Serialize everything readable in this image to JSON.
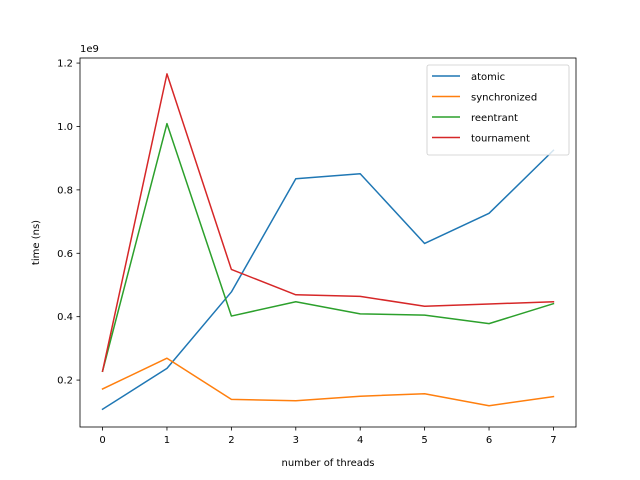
{
  "chart_data": {
    "type": "line",
    "title": "",
    "xlabel": "number of threads",
    "ylabel": "time (ns)",
    "y_offset_label": "1e9",
    "x": [
      0,
      1,
      2,
      3,
      4,
      5,
      6,
      7
    ],
    "xlim": [
      -0.35,
      7.35
    ],
    "ylim": [
      0.052,
      1.216
    ],
    "x_ticks": [
      0,
      1,
      2,
      3,
      4,
      5,
      6,
      7
    ],
    "x_tick_labels": [
      "0",
      "1",
      "2",
      "3",
      "4",
      "5",
      "6",
      "7"
    ],
    "y_ticks": [
      0.2,
      0.4,
      0.6,
      0.8,
      1.0,
      1.2
    ],
    "y_tick_labels": [
      "0.2",
      "0.4",
      "0.6",
      "0.8",
      "1.0",
      "1.2"
    ],
    "grid": false,
    "legend_position": "top-right",
    "series": [
      {
        "name": "atomic",
        "color": "#1f77b4",
        "values": [
          0.108,
          0.237,
          0.478,
          0.835,
          0.851,
          0.631,
          0.726,
          0.925
        ]
      },
      {
        "name": "synchronized",
        "color": "#ff7f0e",
        "values": [
          0.172,
          0.269,
          0.139,
          0.135,
          0.149,
          0.157,
          0.119,
          0.148
        ]
      },
      {
        "name": "reentrant",
        "color": "#2ca02c",
        "values": [
          0.228,
          1.009,
          0.402,
          0.447,
          0.409,
          0.405,
          0.378,
          0.441
        ]
      },
      {
        "name": "tournament",
        "color": "#d62728",
        "values": [
          0.228,
          1.166,
          0.549,
          0.469,
          0.464,
          0.433,
          0.44,
          0.447
        ]
      }
    ]
  }
}
